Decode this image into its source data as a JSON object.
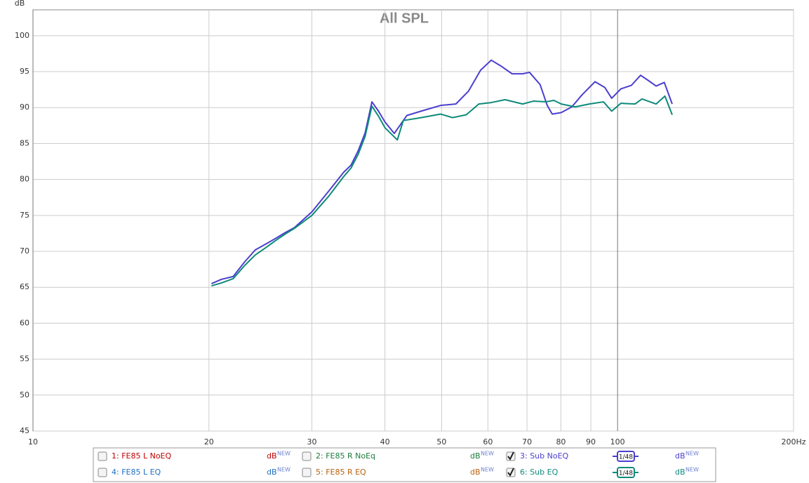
{
  "chart_data": {
    "type": "line",
    "title": "All SPL",
    "y_label": "dB",
    "xscale": "log",
    "xlim": [
      10,
      200
    ],
    "ylim": [
      45,
      103.6
    ],
    "xticks": [
      10,
      20,
      30,
      40,
      50,
      60,
      70,
      80,
      90,
      100,
      {
        "value": 200,
        "label": "200Hz"
      }
    ],
    "yticks": [
      45,
      50,
      55,
      60,
      65,
      70,
      75,
      80,
      85,
      90,
      95,
      100
    ],
    "grid": true,
    "unit": "dB",
    "unit_tag": "NEW",
    "smoothing": "1/48",
    "series": [
      {
        "name": "1: FE85 L NoEQ",
        "color": "#c00000",
        "checked": false,
        "x": [],
        "values": []
      },
      {
        "name": "2: FE85 R NoEq",
        "color": "#1e7a3c",
        "checked": false,
        "x": [],
        "values": []
      },
      {
        "name": "3: Sub NoEQ",
        "color": "#4b3fcf",
        "checked": true,
        "x": [
          20.2,
          21,
          22,
          23,
          24,
          25,
          26,
          27,
          28,
          30,
          32,
          34,
          35,
          36,
          37,
          38,
          39,
          40,
          41.5,
          43.6,
          46.1,
          49.8,
          52.9,
          55.6,
          58.3,
          60.8,
          63.4,
          66.0,
          68.8,
          70.7,
          73.7,
          75.8,
          77.3,
          80.1,
          83.5,
          87.0,
          91.5,
          95.1,
          97.7,
          101.3,
          105.6,
          109.5,
          113.2,
          116.4,
          120.2,
          124.0
        ],
        "values": [
          65.5,
          66.1,
          66.5,
          68.5,
          70.2,
          71.0,
          71.8,
          72.6,
          73.3,
          75.5,
          78.3,
          81.0,
          82.0,
          84.0,
          86.5,
          90.8,
          89.5,
          88.0,
          86.4,
          88.9,
          89.5,
          90.3,
          90.5,
          92.3,
          95.2,
          96.6,
          95.7,
          94.7,
          94.7,
          94.9,
          93.2,
          90.3,
          89.1,
          89.3,
          90.1,
          91.8,
          93.6,
          92.8,
          91.3,
          92.6,
          93.1,
          94.5,
          93.7,
          93.0,
          93.5,
          90.5
        ]
      },
      {
        "name": "4: FE85 L EQ",
        "color": "#1f6fc0",
        "checked": false,
        "x": [],
        "values": []
      },
      {
        "name": "5: FE85 R EQ",
        "color": "#b8610e",
        "checked": false,
        "x": [],
        "values": []
      },
      {
        "name": "6: Sub EQ",
        "color": "#0e8a7a",
        "checked": true,
        "x": [
          20.2,
          21,
          22,
          23,
          24,
          25,
          26,
          27,
          28,
          30,
          32,
          34,
          35,
          36,
          37,
          38,
          39,
          40,
          42,
          43.0,
          46.1,
          49.8,
          52.2,
          55.1,
          57.9,
          60.8,
          64.2,
          68.8,
          71.8,
          75.4,
          77.8,
          80.1,
          84.6,
          89.5,
          94.6,
          97.7,
          101.3,
          107.1,
          110.1,
          116.4,
          120.5,
          124.0
        ],
        "values": [
          65.2,
          65.6,
          66.2,
          68.0,
          69.5,
          70.5,
          71.5,
          72.4,
          73.2,
          75.0,
          77.6,
          80.4,
          81.6,
          83.5,
          86.0,
          90.2,
          88.8,
          87.2,
          85.5,
          88.2,
          88.6,
          89.1,
          88.6,
          89.0,
          90.5,
          90.7,
          91.1,
          90.5,
          90.9,
          90.8,
          91.0,
          90.5,
          90.1,
          90.5,
          90.8,
          89.5,
          90.6,
          90.5,
          91.2,
          90.5,
          91.6,
          89.0
        ]
      }
    ]
  }
}
